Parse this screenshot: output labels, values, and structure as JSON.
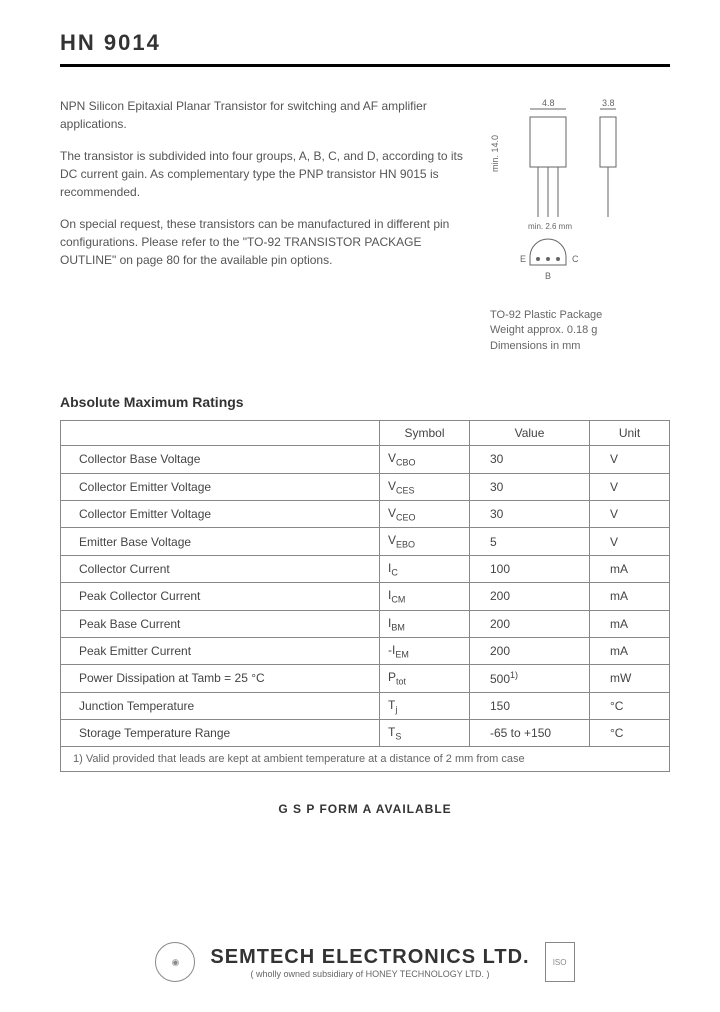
{
  "header": {
    "part_number": "HN 9014"
  },
  "intro": {
    "p1": "NPN Silicon Epitaxial Planar Transistor for switching and AF amplifier applications.",
    "p2": "The transistor is subdivided into four groups, A, B, C, and D, according to its DC current gain. As complementary type the PNP transistor HN 9015 is recommended.",
    "p3": "On special request, these transistors can be manufactured in different pin configurations. Please refer to the \"TO-92 TRANSISTOR PACKAGE OUTLINE\" on page 80 for the available pin options."
  },
  "package": {
    "type": "TO-92 Plastic Package",
    "weight": "Weight approx. 0.18 g",
    "dims": "Dimensions in mm",
    "dim_w": "4.8",
    "dim_t": "3.8",
    "dim_h": "min. 14.0",
    "dim_lead": "min. 2.6 mm",
    "pin_e": "E",
    "pin_b": "B",
    "pin_c": "C",
    "diagram": {
      "body_fill": "#ffffff",
      "stroke": "#666666",
      "stroke_width": 1
    }
  },
  "ratings": {
    "title": "Absolute Maximum Ratings",
    "headers": {
      "symbol": "Symbol",
      "value": "Value",
      "unit": "Unit"
    },
    "rows": [
      {
        "param": "Collector Base Voltage",
        "symbol": "V",
        "sub": "CBO",
        "value": "30",
        "unit": "V"
      },
      {
        "param": "Collector Emitter Voltage",
        "symbol": "V",
        "sub": "CES",
        "value": "30",
        "unit": "V"
      },
      {
        "param": "Collector Emitter Voltage",
        "symbol": "V",
        "sub": "CEO",
        "value": "30",
        "unit": "V"
      },
      {
        "param": "Emitter Base Voltage",
        "symbol": "V",
        "sub": "EBO",
        "value": "5",
        "unit": "V"
      },
      {
        "param": "Collector Current",
        "symbol": "I",
        "sub": "C",
        "value": "100",
        "unit": "mA"
      },
      {
        "param": "Peak Collector Current",
        "symbol": "I",
        "sub": "CM",
        "value": "200",
        "unit": "mA"
      },
      {
        "param": "Peak Base Current",
        "symbol": "I",
        "sub": "BM",
        "value": "200",
        "unit": "mA"
      },
      {
        "param": "Peak Emitter Current",
        "symbol": "-I",
        "sub": "EM",
        "value": "200",
        "unit": "mA"
      },
      {
        "param": "Power Dissipation at Tamb = 25 °C",
        "symbol": "P",
        "sub": "tot",
        "value": "500",
        "sup": "1)",
        "unit": "mW"
      },
      {
        "param": "Junction Temperature",
        "symbol": "T",
        "sub": "j",
        "value": "150",
        "unit": "°C"
      },
      {
        "param": "Storage Temperature Range",
        "symbol": "T",
        "sub": "S",
        "value": "-65 to +150",
        "unit": "°C"
      }
    ],
    "footnote": "1) Valid provided that leads are kept at ambient temperature at a distance of 2 mm from case"
  },
  "gsp": "G S P  FORM A AVAILABLE",
  "footer": {
    "company": "SEMTECH ELECTRONICS LTD.",
    "sub": "( wholly owned subsidiary of HONEY TECHNOLOGY LTD. )"
  },
  "colors": {
    "text": "#333333",
    "muted": "#666666",
    "rule": "#000000",
    "border": "#888888",
    "bg": "#ffffff"
  }
}
